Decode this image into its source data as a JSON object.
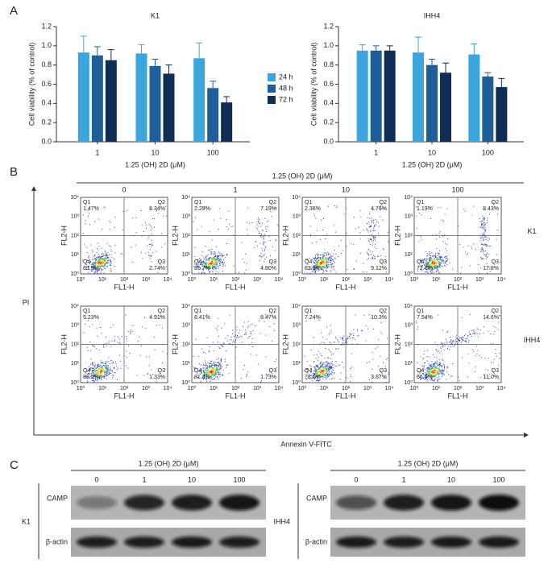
{
  "chart_data": [
    {
      "type": "bar",
      "panel": "A",
      "title": "K1",
      "x_label": "1.25 (OH) 2D (μM)",
      "y_label": "Cell viability (% of control)",
      "categories": [
        "1",
        "10",
        "100"
      ],
      "series": [
        {
          "name": "24 h",
          "color": "#3ba6de",
          "values": [
            0.93,
            0.92,
            0.87
          ],
          "errors": [
            0.17,
            0.09,
            0.16
          ]
        },
        {
          "name": "48 h",
          "color": "#1f5f99",
          "values": [
            0.9,
            0.79,
            0.56
          ],
          "errors": [
            0.09,
            0.07,
            0.07
          ]
        },
        {
          "name": "72 h",
          "color": "#0f2e55",
          "values": [
            0.85,
            0.71,
            0.41
          ],
          "errors": [
            0.11,
            0.09,
            0.06
          ]
        }
      ],
      "ylim": [
        0,
        1.2
      ],
      "yticks": [
        {
          "value": 0,
          "label": "0.0"
        },
        0.2,
        0.4,
        0.6,
        0.8,
        {
          "value": 1,
          "label": "1.0"
        },
        1.2
      ]
    },
    {
      "type": "bar",
      "title": "IHH4",
      "x_label": "1.25 (OH) 2D (μM)",
      "y_label": "Cell viability (% of control)",
      "categories": [
        "1",
        "10",
        "100"
      ],
      "series": [
        {
          "color": "#3ba6de",
          "values": [
            0.95,
            0.93,
            0.91
          ],
          "errors": [
            0.06,
            0.16,
            0.11
          ]
        },
        {
          "color": "#1f5f99",
          "values": [
            0.95,
            0.8,
            0.68
          ],
          "errors": [
            0.05,
            0.06,
            0.04
          ]
        },
        {
          "color": "#0f2e55",
          "values": [
            0.95,
            0.72,
            0.57
          ],
          "errors": [
            0.05,
            0.1,
            0.09
          ]
        }
      ],
      "ylim": [
        0,
        1.2
      ],
      "yticks": [
        {
          "value": 0,
          "label": "0.0"
        },
        0.2,
        0.4,
        0.6,
        0.8,
        {
          "value": 1,
          "label": "1.0"
        },
        1.2
      ]
    }
  ],
  "panel_b": {
    "label": "B",
    "treatment_label": "1.25 (OH) 2D (μM)",
    "doses": [
      "0",
      "1",
      "10",
      "100"
    ],
    "y_label": "PI",
    "x_label": "Annexin V-FITC",
    "plot_x_label": "FL1-H",
    "plot_y_label": "FL2-H",
    "axis_ticks": [
      "10⁰",
      "10¹",
      "10²",
      "10³",
      "10⁴"
    ],
    "quadrant_names": [
      "Q1",
      "Q2",
      "Q3",
      "Q4"
    ],
    "rows": [
      {
        "cell_line": "K1",
        "plots": [
          {
            "q1": "1.47%",
            "q2": "6.34%",
            "q3": "2.74%",
            "q4": "89.5%"
          },
          {
            "q1": "2.29%",
            "q2": "7.19%",
            "q3": "4.80%",
            "q4": "85.7%"
          },
          {
            "q1": "2.36%",
            "q2": "4.76%",
            "q3": "9.12%",
            "q4": "83.8%"
          },
          {
            "q1": "1.19%",
            "q2": "8.43%",
            "q3": "17.8%",
            "q4": "72.6%"
          }
        ]
      },
      {
        "cell_line": "IHH4",
        "plots": [
          {
            "q1": "5.23%",
            "q2": "4.91%",
            "q3": "1.33%",
            "q4": "88.5%"
          },
          {
            "q1": "8.41%",
            "q2": "8.47%",
            "q3": "1.73%",
            "q4": "81.4%"
          },
          {
            "q1": "7.24%",
            "q2": "10.3%",
            "q3": "3.87%",
            "q4": "78.6%"
          },
          {
            "q1": "7.54%",
            "q2": "14.6%",
            "q3": "11.0%",
            "q4": "66.9%"
          }
        ]
      }
    ]
  },
  "panel_c": {
    "label": "C",
    "treatment_label": "1.25 (OH) 2D (μM)",
    "doses": [
      "0",
      "1",
      "10",
      "100"
    ],
    "blots": [
      {
        "cell_line": "K1",
        "proteins": [
          "CAMP",
          "β-actin"
        ]
      },
      {
        "cell_line": "IHH4",
        "proteins": [
          "CAMP",
          "β-actin"
        ]
      }
    ]
  }
}
